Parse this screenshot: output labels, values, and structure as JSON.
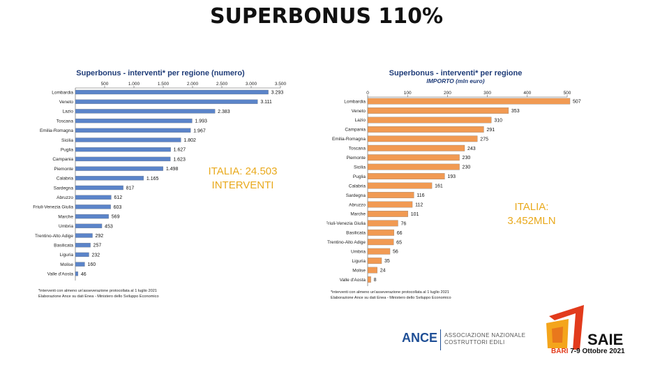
{
  "page": {
    "title": "SUPERBONUS 110%"
  },
  "chart_data": [
    {
      "type": "bar",
      "orientation": "horizontal",
      "title": "Superbonus - interventi* per regione (numero)",
      "subtitle": "",
      "categories": [
        "Lombardia",
        "Veneto",
        "Lazio",
        "Toscana",
        "Emilia-Romagna",
        "Sicilia",
        "Puglia",
        "Campania",
        "Piemonte",
        "Calabria",
        "Sardegna",
        "Abruzzo",
        "Friuli-Venezia Giulia",
        "Marche",
        "Umbria",
        "Trentino-Alto Adige",
        "Basilicata",
        "Liguria",
        "Molise",
        "Valle d'Aosta"
      ],
      "values": [
        3293,
        3111,
        2383,
        1993,
        1967,
        1802,
        1627,
        1623,
        1498,
        1165,
        817,
        612,
        603,
        569,
        453,
        292,
        257,
        232,
        160,
        46
      ],
      "value_labels": [
        "3.293",
        "3.111",
        "2.383",
        "1.993",
        "1.967",
        "1.802",
        "1.627",
        "1.623",
        "1.498",
        "1.165",
        "817",
        "612",
        "603",
        "569",
        "453",
        "292",
        "257",
        "232",
        "160",
        "46"
      ],
      "xlim": [
        0,
        3500
      ],
      "ticks": [
        500,
        1000,
        1500,
        2000,
        2500,
        3000,
        3500
      ],
      "tick_labels": [
        "500",
        "1.000",
        "1.500",
        "2.000",
        "2.500",
        "3.000",
        "3.500"
      ],
      "bar_color": "#5b84c9",
      "grid": false
    },
    {
      "type": "bar",
      "orientation": "horizontal",
      "title": "Superbonus - interventi* per regione",
      "subtitle": "IMPORTO  (mln euro)",
      "categories": [
        "Lombardia",
        "Veneto",
        "Lazio",
        "Campania",
        "Emilia-Romagna",
        "Toscana",
        "Piemonte",
        "Sicilia",
        "Puglia",
        "Calabria",
        "Sardegna",
        "Abruzzo",
        "Marche",
        "Friuli-Venezia Giulia",
        "Basilicata",
        "Trentino-Alto Adige",
        "Umbria",
        "Liguria",
        "Molise",
        "Valle d'Aosta"
      ],
      "values": [
        507,
        353,
        310,
        291,
        275,
        243,
        230,
        230,
        193,
        161,
        116,
        112,
        101,
        76,
        66,
        65,
        56,
        35,
        24,
        8
      ],
      "value_labels": [
        "507",
        "353",
        "310",
        "291",
        "275",
        "243",
        "230",
        "230",
        "193",
        "161",
        "116",
        "112",
        "101",
        "76",
        "66",
        "65",
        "56",
        "35",
        "24",
        "8"
      ],
      "xlim": [
        0,
        500
      ],
      "ticks": [
        0,
        100,
        200,
        300,
        400,
        500
      ],
      "tick_labels": [
        "0",
        "100",
        "200",
        "300",
        "400",
        "500"
      ],
      "bar_color": "#f19a53",
      "grid": false
    }
  ],
  "notes": {
    "left": [
      "*interventi con almeno un'asseverazione protocollata al 1 luglio 2021",
      "Elaborazione Ance su dati Enea - Ministero dello Sviluppo Economico"
    ],
    "right": [
      "*interventi con almeno un'asseverazione protocollata al 1 luglio 2021",
      "Elaborazione Ance su dati Enea - Ministero dello Sviluppo Economico"
    ]
  },
  "totals": {
    "left": [
      "ITALIA: 24.503",
      "INTERVENTI"
    ],
    "right": [
      "ITALIA:",
      "3.452MLN"
    ]
  },
  "footer": {
    "ance": "ANCE",
    "ance_sub": [
      "ASSOCIAZIONE NAZIONALE",
      "COSTRUTTORI EDILI"
    ],
    "saie": "SAIE",
    "saie_city": "BARI",
    "saie_dates": "7-9 Ottobre 2021"
  },
  "colors": {
    "accent_text": "#e9a91c",
    "title_blue": "#1f3c78"
  }
}
